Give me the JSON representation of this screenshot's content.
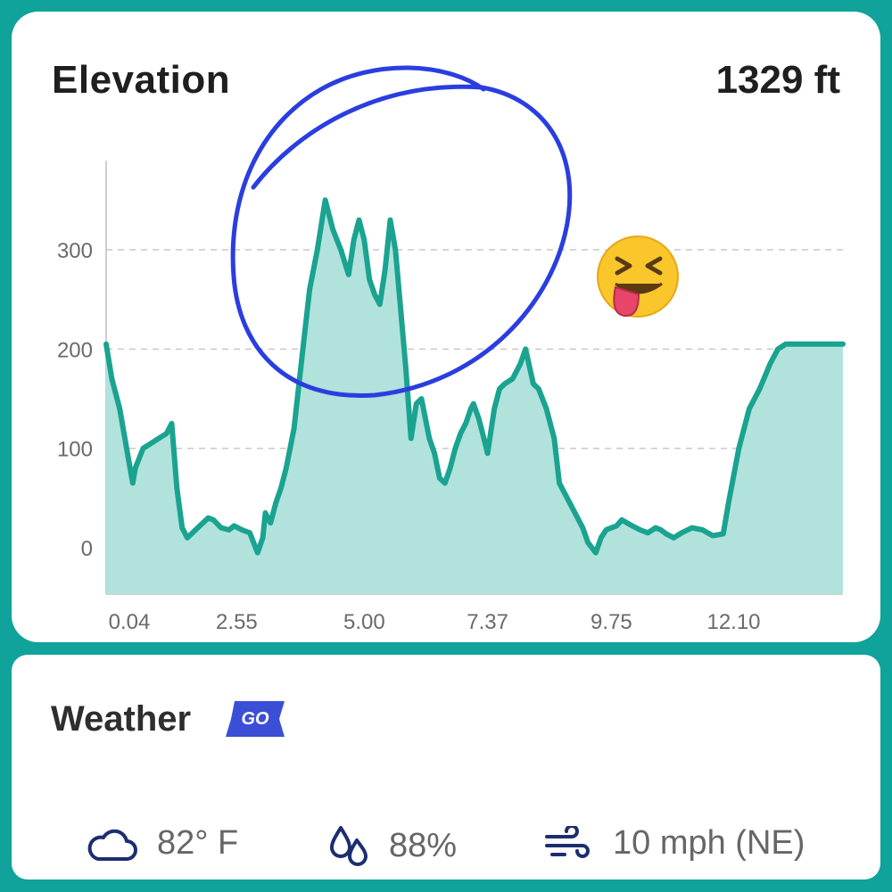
{
  "elevation": {
    "title": "Elevation",
    "current_value": "1329 ft"
  },
  "weather": {
    "title": "Weather",
    "badge": "GO",
    "temperature": "82° F",
    "humidity": "88%",
    "wind": "10 mph (NE)",
    "icons": [
      "cloud-icon",
      "droplets-icon",
      "wind-icon"
    ]
  },
  "colors": {
    "background": "#0fa39b",
    "line": "#1aa390",
    "fill": "#b2e2dc",
    "annotation": "#2a3ee0",
    "badge": "#3b4fd6"
  },
  "chart_data": {
    "type": "area",
    "ylim": [
      -45,
      390
    ],
    "yticks": [
      0,
      100,
      200,
      300
    ],
    "xlim": [
      0.04,
      14.2
    ],
    "xtick_labels": [
      "0.04",
      "2.55",
      "5.00",
      "7.37",
      "9.75",
      "12.10"
    ],
    "xticks": [
      0.04,
      2.55,
      5.0,
      7.37,
      9.75,
      12.1
    ],
    "grid": "horizontal dashed",
    "series": [
      {
        "x": [
          0.04,
          0.15,
          0.3,
          0.45,
          0.55,
          0.6,
          0.75,
          0.9,
          1.05,
          1.2,
          1.3,
          1.4,
          1.5,
          1.6,
          1.7,
          1.8,
          1.9,
          2.0,
          2.1,
          2.25,
          2.4,
          2.5,
          2.65,
          2.8,
          2.95,
          3.05,
          3.1,
          3.2,
          3.3,
          3.4,
          3.5,
          3.65,
          3.8,
          3.95,
          4.1,
          4.25,
          4.4,
          4.55,
          4.7,
          4.8,
          4.9,
          5.0,
          5.1,
          5.2,
          5.3,
          5.4,
          5.5,
          5.6,
          5.7,
          5.8,
          5.9,
          6.0,
          6.1,
          6.25,
          6.35,
          6.45,
          6.55,
          6.65,
          6.75,
          6.85,
          6.95,
          7.05,
          7.1,
          7.2,
          7.3,
          7.37,
          7.5,
          7.6,
          7.7,
          7.85,
          8.0,
          8.1,
          8.25,
          8.35,
          8.5,
          8.65,
          8.75,
          8.9,
          9.0,
          9.1,
          9.2,
          9.3,
          9.45,
          9.55,
          9.65,
          9.75,
          9.85,
          9.95,
          10.05,
          10.15,
          10.3,
          10.45,
          10.6,
          10.7,
          10.8,
          10.95,
          11.1,
          11.3,
          11.5,
          11.7,
          11.9,
          12.0,
          12.2,
          12.4,
          12.6,
          12.8,
          12.95,
          13.1,
          13.25,
          13.4,
          13.5,
          13.6,
          13.7,
          13.8,
          13.9,
          14.0,
          14.1,
          14.2
        ],
        "y": [
          205,
          170,
          140,
          95,
          65,
          80,
          100,
          105,
          110,
          115,
          125,
          60,
          20,
          10,
          15,
          20,
          25,
          30,
          28,
          20,
          18,
          22,
          18,
          15,
          -5,
          10,
          35,
          25,
          45,
          60,
          80,
          120,
          190,
          260,
          300,
          350,
          320,
          300,
          275,
          310,
          330,
          310,
          270,
          255,
          245,
          280,
          330,
          300,
          240,
          180,
          110,
          145,
          150,
          110,
          95,
          70,
          65,
          80,
          100,
          115,
          125,
          140,
          145,
          130,
          110,
          95,
          140,
          160,
          165,
          170,
          185,
          200,
          165,
          160,
          140,
          110,
          65,
          50,
          40,
          30,
          20,
          5,
          -5,
          10,
          18,
          20,
          22,
          28,
          25,
          22,
          18,
          15,
          20,
          18,
          14,
          10,
          15,
          20,
          18,
          12,
          14,
          45,
          100,
          140,
          160,
          185,
          200,
          205,
          205,
          205,
          205,
          205,
          205,
          205,
          205,
          205,
          205,
          205
        ]
      }
    ]
  }
}
